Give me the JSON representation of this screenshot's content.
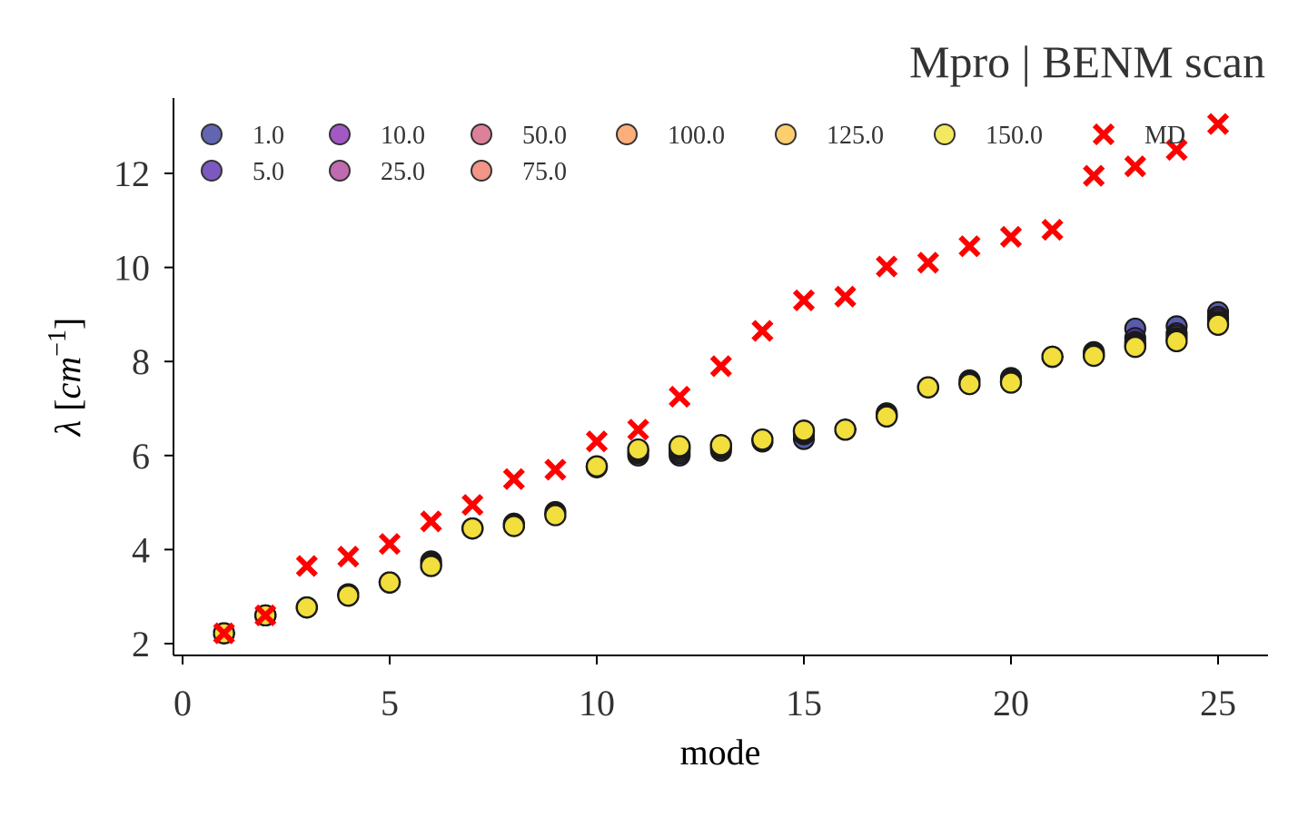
{
  "chart_data": {
    "type": "scatter",
    "title": "Mpro | BENM scan",
    "xlabel": "mode",
    "ylabel_greek": "λ",
    "ylabel_unit_base": "cm",
    "ylabel_unit_exp": "−1",
    "xlim": [
      -0.3,
      26.2
    ],
    "ylim": [
      1.7,
      13.6
    ],
    "xticks": [
      0,
      5,
      10,
      15,
      20,
      25
    ],
    "yticks": [
      2,
      4,
      6,
      8,
      10,
      12
    ],
    "grid": false,
    "legend_position": "top-left",
    "legend_columns": 7,
    "x": [
      1,
      2,
      3,
      4,
      5,
      6,
      7,
      8,
      9,
      10,
      11,
      12,
      13,
      14,
      15,
      16,
      17,
      18,
      19,
      20,
      21,
      22,
      23,
      24,
      25
    ],
    "series": [
      {
        "name": "1.0",
        "color": "#3b3f9e",
        "values": [
          2.22,
          2.6,
          2.77,
          3.05,
          3.3,
          3.75,
          4.45,
          4.55,
          4.8,
          5.75,
          6.0,
          6.0,
          6.1,
          6.3,
          6.35,
          6.55,
          6.9,
          7.45,
          7.6,
          7.65,
          8.1,
          8.2,
          8.7,
          8.75,
          9.05
        ]
      },
      {
        "name": "5.0",
        "color": "#5a2fb0",
        "values": [
          2.22,
          2.6,
          2.77,
          3.05,
          3.3,
          3.72,
          4.45,
          4.55,
          4.78,
          5.75,
          6.05,
          6.05,
          6.15,
          6.3,
          6.45,
          6.55,
          6.88,
          7.45,
          7.58,
          7.62,
          8.1,
          8.18,
          8.5,
          8.6,
          8.95
        ]
      },
      {
        "name": "10.0",
        "color": "#8b2fb8",
        "values": [
          2.22,
          2.6,
          2.77,
          3.04,
          3.3,
          3.7,
          4.45,
          4.53,
          4.77,
          5.76,
          6.08,
          6.1,
          6.18,
          6.32,
          6.48,
          6.55,
          6.86,
          7.45,
          7.56,
          7.6,
          8.1,
          8.16,
          8.42,
          8.55,
          8.9
        ]
      },
      {
        "name": "25.0",
        "color": "#b0469e",
        "values": [
          2.22,
          2.6,
          2.77,
          3.03,
          3.3,
          3.68,
          4.45,
          4.52,
          4.76,
          5.76,
          6.1,
          6.15,
          6.2,
          6.33,
          6.5,
          6.55,
          6.85,
          7.45,
          7.54,
          7.58,
          8.1,
          8.14,
          8.38,
          8.5,
          8.85
        ]
      },
      {
        "name": "50.0",
        "color": "#d4607f",
        "values": [
          2.22,
          2.6,
          2.77,
          3.03,
          3.3,
          3.67,
          4.45,
          4.51,
          4.75,
          5.77,
          6.11,
          6.17,
          6.21,
          6.33,
          6.52,
          6.55,
          6.84,
          7.45,
          7.53,
          7.57,
          8.1,
          8.13,
          8.35,
          8.47,
          8.82
        ]
      },
      {
        "name": "75.0",
        "color": "#f07a6a",
        "values": [
          2.22,
          2.6,
          2.77,
          3.02,
          3.3,
          3.66,
          4.45,
          4.5,
          4.74,
          5.77,
          6.12,
          6.18,
          6.22,
          6.34,
          6.52,
          6.55,
          6.84,
          7.45,
          7.52,
          7.56,
          8.1,
          8.12,
          8.33,
          8.45,
          8.8
        ]
      },
      {
        "name": "100.0",
        "color": "#fb9a5a",
        "values": [
          2.22,
          2.6,
          2.77,
          3.02,
          3.3,
          3.65,
          4.45,
          4.5,
          4.74,
          5.77,
          6.12,
          6.19,
          6.22,
          6.34,
          6.53,
          6.55,
          6.83,
          7.45,
          7.52,
          7.56,
          8.1,
          8.12,
          8.32,
          8.44,
          8.79
        ]
      },
      {
        "name": "125.0",
        "color": "#fcc24a",
        "values": [
          2.22,
          2.6,
          2.77,
          3.02,
          3.3,
          3.65,
          4.45,
          4.5,
          4.73,
          5.77,
          6.13,
          6.2,
          6.22,
          6.34,
          6.53,
          6.55,
          6.83,
          7.45,
          7.52,
          7.55,
          8.1,
          8.12,
          8.31,
          8.43,
          8.78
        ]
      },
      {
        "name": "150.0",
        "color": "#f0e43a",
        "values": [
          2.22,
          2.6,
          2.77,
          3.02,
          3.3,
          3.65,
          4.45,
          4.5,
          4.73,
          5.77,
          6.13,
          6.2,
          6.22,
          6.34,
          6.53,
          6.55,
          6.83,
          7.45,
          7.52,
          7.55,
          8.1,
          8.12,
          8.31,
          8.43,
          8.78
        ]
      }
    ],
    "md": {
      "name": "MD",
      "color": "#ff0000",
      "values": [
        2.22,
        2.6,
        3.65,
        3.85,
        4.12,
        4.6,
        4.95,
        5.5,
        5.7,
        6.3,
        6.55,
        7.25,
        7.9,
        8.65,
        9.3,
        9.38,
        10.02,
        10.1,
        10.45,
        10.65,
        10.8,
        11.95,
        12.15,
        12.5,
        13.05
      ]
    }
  }
}
